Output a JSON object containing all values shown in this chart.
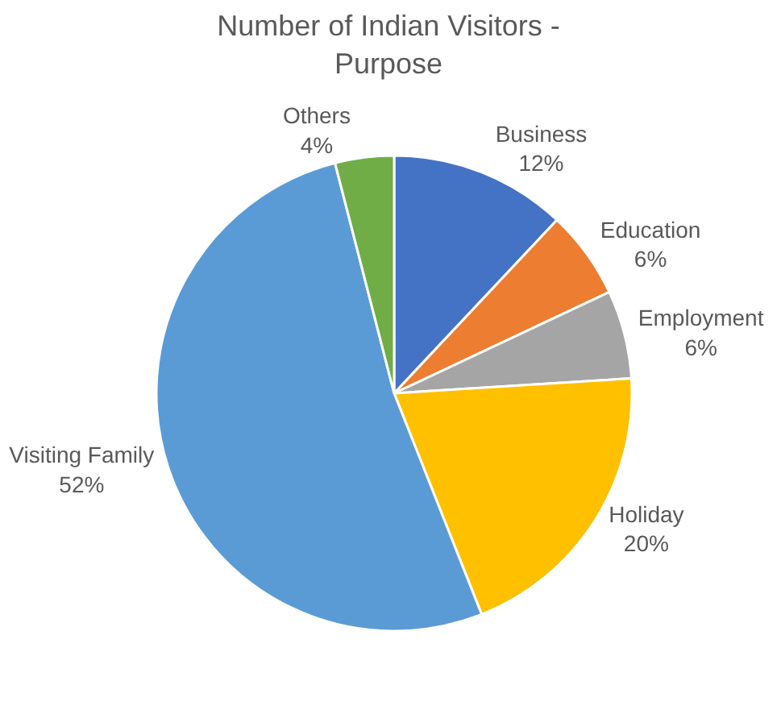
{
  "chart_data": {
    "type": "pie",
    "title": "Number of Indian Visitors -\nPurpose",
    "categories": [
      "Business",
      "Education",
      "Employment",
      "Holiday",
      "Visiting Family",
      "Others"
    ],
    "values": [
      12,
      6,
      6,
      20,
      52,
      4
    ],
    "colors": [
      "#4472c4",
      "#ed7d31",
      "#a5a5a5",
      "#ffc000",
      "#5b9bd5",
      "#70ad47"
    ],
    "value_labels": [
      "12%",
      "6%",
      "6%",
      "20%",
      "52%",
      "4%"
    ],
    "legend": false
  }
}
